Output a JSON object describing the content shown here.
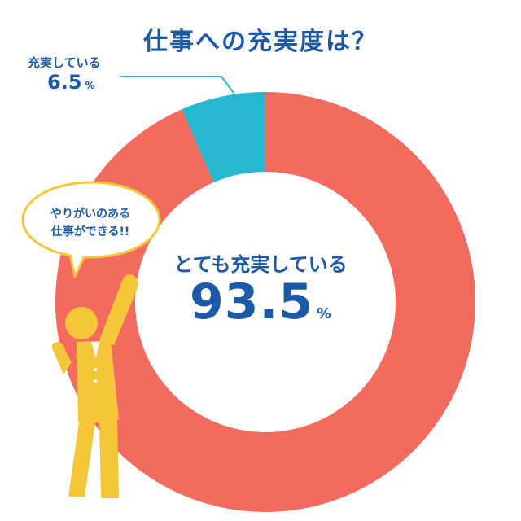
{
  "title": "仕事への充実度は？",
  "speech_bubble": "やりがいのある\n仕事ができる!!",
  "chart_data": {
    "type": "pie",
    "donut": true,
    "categories": [
      "とても充実している",
      "充実している"
    ],
    "values": [
      93.5,
      6.5
    ],
    "unit": "%",
    "colors": [
      "#f26b5e",
      "#25b8ce"
    ],
    "labels": [
      {
        "category": "とても充実している",
        "value": "93.5",
        "unit": "%"
      },
      {
        "category": "充実している",
        "value": "6.5",
        "unit": "%"
      }
    ]
  },
  "colors": {
    "title": "#1a5aa8",
    "figure": "#f5c638"
  }
}
